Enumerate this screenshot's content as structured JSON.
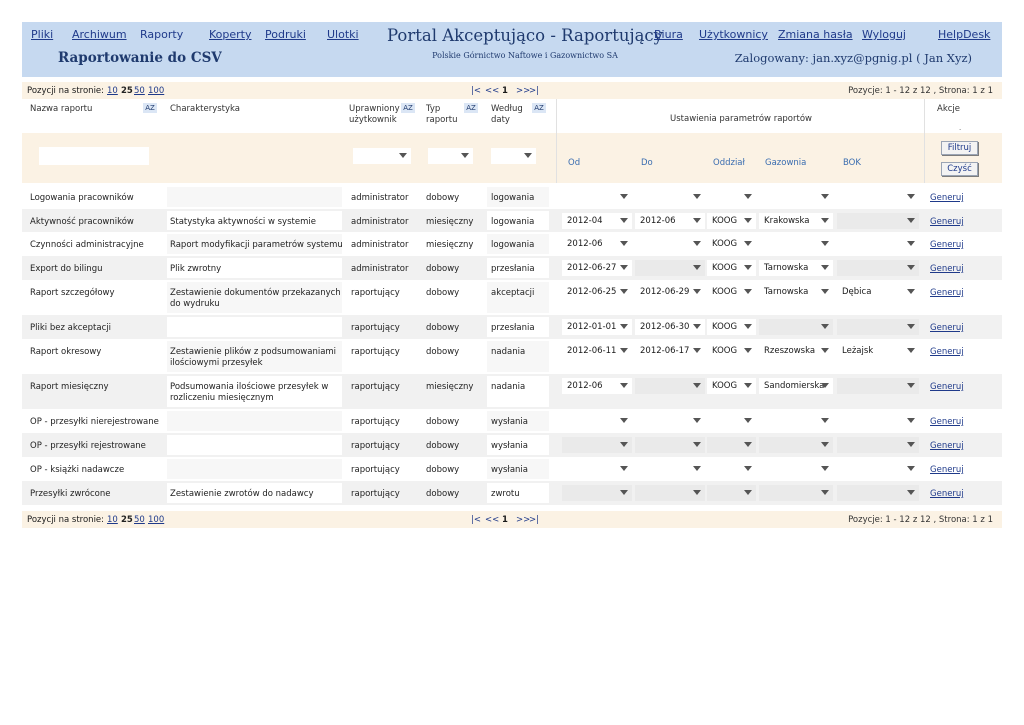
{
  "header": {
    "nav_left": [
      "Pliki",
      "Archiwum",
      "Raporty",
      "Koperty",
      "Podruki",
      "Ulotki"
    ],
    "nav_right": [
      "Biura",
      "Użytkownicy",
      "Zmiana hasła",
      "Wyloguj",
      "HelpDesk"
    ],
    "portal_title": "Portal Akceptująco - Raportujący",
    "portal_subtitle": "Polskie Górnictwo Naftowe i Gazownictwo SA",
    "page_title": "Raportowanie do CSV",
    "logged_in": "Zalogowany: jan.xyz@pgnig.pl ( Jan Xyz)"
  },
  "pager": {
    "per_page_label": "Pozycji na stronie:",
    "per_page_options": [
      "10",
      "25",
      "50",
      "100"
    ],
    "selected_per_page": "25",
    "nav_first": "|<",
    "nav_prev": "<<",
    "current_page": "1",
    "nav_next": ">>",
    "nav_last": ">|",
    "info": "Pozycje:  1 - 12  z  12  ,  Strona:  1  z  1"
  },
  "columns": {
    "name": "Nazwa raportu",
    "description": "Charakterystyka",
    "user_line1": "Uprawniony",
    "user_line2": "użytkownik",
    "type_line1": "Typ",
    "type_line2": "raportu",
    "by_line1": "Według",
    "by_line2": "daty",
    "sort_badge": "AZ",
    "settings": "Ustawienia parametrów raportów",
    "actions": "Akcje",
    "actions_dot": "."
  },
  "params": {
    "from": "Od",
    "to": "Do",
    "branch": "Oddział",
    "gasworks": "Gazownia",
    "bok": "BOK"
  },
  "buttons": {
    "filter": "Filtruj",
    "clear": "Czyść",
    "generate": "Generuj"
  },
  "rows": [
    {
      "name": "Logowania pracowników",
      "desc": "",
      "desc2": "",
      "user": "administrator",
      "type": "dobowy",
      "by": "logowania",
      "from": "",
      "to": "",
      "branch": "",
      "gas": "",
      "bok": ""
    },
    {
      "name": "Aktywność pracowników",
      "desc": "Statystyka aktywności w systemie",
      "desc2": "",
      "user": "administrator",
      "type": "miesięczny",
      "by": "logowania",
      "from": "2012-04",
      "to": "2012-06",
      "branch": "KOOG",
      "gas": "Krakowska",
      "bok": ""
    },
    {
      "name": "Czynności administracyjne",
      "desc": "Raport modyfikacji parametrów systemu",
      "desc2": "",
      "user": "administrator",
      "type": "miesięczny",
      "by": "logowania",
      "from": "2012-06",
      "to": "",
      "branch": "KOOG",
      "gas": "",
      "bok": ""
    },
    {
      "name": "Export do bilingu",
      "desc": "Plik zwrotny",
      "desc2": "",
      "user": "administrator",
      "type": "dobowy",
      "by": "przesłania",
      "from": "2012-06-27",
      "to": "",
      "branch": "KOOG",
      "gas": "Tarnowska",
      "bok": ""
    },
    {
      "name": "Raport szczegółowy",
      "desc": "Zestawienie dokumentów przekazanych",
      "desc2": "do wydruku",
      "user": "raportujący",
      "type": "dobowy",
      "by": "akceptacji",
      "from": "2012-06-25",
      "to": "2012-06-29",
      "branch": "KOOG",
      "gas": "Tarnowska",
      "bok": "Dębica"
    },
    {
      "name": "Pliki bez akceptacji",
      "desc": "",
      "desc2": "",
      "user": "raportujący",
      "type": "dobowy",
      "by": "przesłania",
      "from": "2012-01-01",
      "to": "2012-06-30",
      "branch": "KOOG",
      "gas": "",
      "bok": ""
    },
    {
      "name": "Raport okresowy",
      "desc": "Zestawienie plików z podsumowaniami",
      "desc2": "ilościowymi przesyłek",
      "user": "raportujący",
      "type": "dobowy",
      "by": "nadania",
      "from": "2012-06-11",
      "to": "2012-06-17",
      "branch": "KOOG",
      "gas": "Rzeszowska",
      "bok": "Leżajsk"
    },
    {
      "name": "Raport miesięczny",
      "desc": "Podsumowania ilościowe przesyłek w",
      "desc2": "rozliczeniu miesięcznym",
      "user": "raportujący",
      "type": "miesięczny",
      "by": "nadania",
      "from": "2012-06",
      "to": "",
      "branch": "KOOG",
      "gas": "Sandomierska",
      "bok": ""
    },
    {
      "name": "OP - przesyłki nierejestrowane",
      "desc": "",
      "desc2": "",
      "user": "raportujący",
      "type": "dobowy",
      "by": "wysłania",
      "from": "",
      "to": "",
      "branch": "",
      "gas": "",
      "bok": ""
    },
    {
      "name": "OP - przesyłki rejestrowane",
      "desc": "",
      "desc2": "",
      "user": "raportujący",
      "type": "dobowy",
      "by": "wysłania",
      "from": "",
      "to": "",
      "branch": "",
      "gas": "",
      "bok": ""
    },
    {
      "name": "OP - książki nadawcze",
      "desc": "",
      "desc2": "",
      "user": "raportujący",
      "type": "dobowy",
      "by": "wysłania",
      "from": "",
      "to": "",
      "branch": "",
      "gas": "",
      "bok": ""
    },
    {
      "name": "Przesyłki zwrócone",
      "desc": "Zestawienie zwrotów do nadawcy",
      "desc2": "",
      "user": "raportujący",
      "type": "dobowy",
      "by": "zwrotu",
      "from": "",
      "to": "",
      "branch": "",
      "gas": "",
      "bok": ""
    }
  ]
}
